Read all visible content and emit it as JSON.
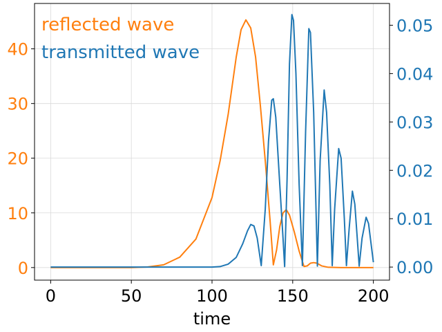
{
  "chart_data": {
    "type": "line",
    "title": "",
    "xlabel": "time",
    "xlim": [
      -10,
      210
    ],
    "x_ticks": [
      0,
      50,
      100,
      150,
      200
    ],
    "x_tick_labels": [
      "0",
      "50",
      "100",
      "150",
      "200"
    ],
    "grid": true,
    "legend": "text labels at top-left, colored by series",
    "axes": [
      {
        "side": "left",
        "color": "#ff7f0e",
        "ylim": [
          -2.3,
          48.3
        ],
        "ticks": [
          0,
          10,
          20,
          30,
          40
        ],
        "tick_labels": [
          "0",
          "10",
          "20",
          "30",
          "40"
        ]
      },
      {
        "side": "right",
        "color": "#1f77b4",
        "ylim": [
          -0.0027,
          0.0545
        ],
        "ticks": [
          0,
          0.01,
          0.02,
          0.03,
          0.04,
          0.05
        ],
        "tick_labels": [
          "0.00",
          "0.01",
          "0.02",
          "0.03",
          "0.04",
          "0.05"
        ]
      }
    ],
    "series": [
      {
        "name": "reflected wave",
        "axis": "left",
        "color": "#ff7f0e",
        "points": [
          [
            0,
            0
          ],
          [
            50,
            0
          ],
          [
            60,
            0.1
          ],
          [
            70,
            0.5
          ],
          [
            80,
            1.9
          ],
          [
            90,
            5.2
          ],
          [
            100,
            12.8
          ],
          [
            105,
            19.5
          ],
          [
            110,
            28.0
          ],
          [
            115,
            38.5
          ],
          [
            118,
            43.5
          ],
          [
            121,
            45.3
          ],
          [
            124,
            43.8
          ],
          [
            127,
            38.5
          ],
          [
            130,
            29.5
          ],
          [
            133,
            19.5
          ],
          [
            136,
            8.5
          ],
          [
            138,
            0.5
          ],
          [
            140,
            3.2
          ],
          [
            142,
            7.5
          ],
          [
            144,
            10.0
          ],
          [
            146,
            10.6
          ],
          [
            148,
            9.6
          ],
          [
            151,
            6.5
          ],
          [
            154,
            3.0
          ],
          [
            157,
            0.2
          ],
          [
            159,
            0.3
          ],
          [
            161,
            0.8
          ],
          [
            163,
            0.9
          ],
          [
            165,
            0.8
          ],
          [
            168,
            0.3
          ],
          [
            172,
            0.05
          ],
          [
            180,
            0
          ],
          [
            200,
            0
          ]
        ]
      },
      {
        "name": "transmitted wave",
        "axis": "right",
        "color": "#1f77b4",
        "points": [
          [
            0,
            0
          ],
          [
            100,
            0
          ],
          [
            105,
            0.0001
          ],
          [
            110,
            0.0006
          ],
          [
            115,
            0.002
          ],
          [
            119,
            0.0048
          ],
          [
            122,
            0.0075
          ],
          [
            124,
            0.0088
          ],
          [
            126,
            0.0085
          ],
          [
            128,
            0.006
          ],
          [
            130.5,
            0.0003
          ],
          [
            133,
            0.012
          ],
          [
            135,
            0.026
          ],
          [
            137,
            0.0345
          ],
          [
            138,
            0.0348
          ],
          [
            139.5,
            0.031
          ],
          [
            142,
            0.017
          ],
          [
            144,
            0.006
          ],
          [
            145,
            0.0001
          ],
          [
            146.5,
            0.018
          ],
          [
            148,
            0.042
          ],
          [
            149.5,
            0.0522
          ],
          [
            150.5,
            0.051
          ],
          [
            152,
            0.04
          ],
          [
            154,
            0.017
          ],
          [
            156,
            0.0003
          ],
          [
            158,
            0.028
          ],
          [
            160,
            0.0493
          ],
          [
            161,
            0.0485
          ],
          [
            163,
            0.032
          ],
          [
            165.3,
            0.0002
          ],
          [
            167,
            0.022
          ],
          [
            169.5,
            0.0366
          ],
          [
            171,
            0.032
          ],
          [
            173,
            0.017
          ],
          [
            174.5,
            0.0003
          ],
          [
            176,
            0.012
          ],
          [
            178.5,
            0.0245
          ],
          [
            180,
            0.0225
          ],
          [
            182,
            0.01
          ],
          [
            183.3,
            0.0003
          ],
          [
            185,
            0.008
          ],
          [
            187,
            0.0157
          ],
          [
            188.5,
            0.013
          ],
          [
            190,
            0.006
          ],
          [
            191.2,
            0.0002
          ],
          [
            193,
            0.006
          ],
          [
            195.5,
            0.0103
          ],
          [
            197,
            0.009
          ],
          [
            198.5,
            0.005
          ],
          [
            200,
            0.001
          ]
        ]
      }
    ]
  }
}
